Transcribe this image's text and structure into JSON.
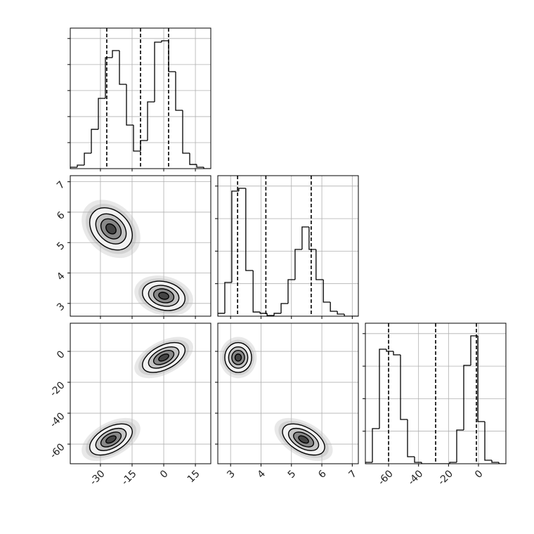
{
  "chart_data": [
    {
      "type": "histogram",
      "bins": [
        -44.3,
        -40.97,
        -37.64,
        -34.31,
        -30.98,
        -27.65,
        -24.32,
        -20.99,
        -17.66,
        -14.33,
        -11.0,
        -7.67,
        -4.34,
        -1.01,
        2.32,
        5.65,
        8.98,
        12.31,
        15.64,
        18.97,
        22.3
      ],
      "counts": [
        11,
        27,
        119,
        302,
        540,
        853,
        907,
        648,
        335,
        135,
        216,
        513,
        972,
        983,
        745,
        448,
        119,
        32,
        11,
        0
      ],
      "quantiles": [
        -27.0,
        -11.0,
        2.3
      ],
      "xlim": [
        -44.3,
        22.3
      ],
      "xticks": [
        -30,
        -15,
        0,
        15
      ],
      "ylim": [
        0,
        1080
      ],
      "yticks": [
        200,
        400,
        600,
        800,
        1000
      ],
      "grid": true
    },
    {
      "type": "contour",
      "xlim": [
        -44.3,
        22.3
      ],
      "xticks": [
        -30,
        -15,
        0,
        15
      ],
      "ylim": [
        2.58,
        7.2
      ],
      "yticks": [
        3,
        4,
        5,
        6,
        7
      ],
      "grid": true,
      "levels": [
        0.5,
        1,
        1.5,
        2.1
      ],
      "clusters": [
        {
          "x": -25,
          "y": 5.45,
          "sx": 4.8,
          "sy": 0.33,
          "rho": -0.3
        },
        {
          "x": 0,
          "y": 3.25,
          "sx": 4.8,
          "sy": 0.23,
          "rho": -0.2
        }
      ]
    },
    {
      "type": "histogram",
      "bins": [
        2.58,
        2.81,
        3.04,
        3.27,
        3.5,
        3.74,
        3.97,
        4.2,
        4.43,
        4.66,
        4.89,
        5.12,
        5.35,
        5.58,
        5.81,
        6.05,
        6.28,
        6.51,
        6.74,
        6.97,
        7.2
      ],
      "counts": [
        22,
        259,
        961,
        983,
        351,
        32,
        22,
        5,
        22,
        97,
        281,
        513,
        686,
        513,
        281,
        108,
        38,
        16,
        0,
        0
      ],
      "quantiles": [
        3.23,
        4.16,
        5.65
      ],
      "xlim": [
        2.58,
        7.2
      ],
      "xticks": [
        3,
        4,
        5,
        6,
        7
      ],
      "ylim": [
        0,
        1080
      ],
      "yticks": [
        250,
        500,
        750,
        1000
      ],
      "grid": true
    },
    {
      "type": "contour",
      "xlim": [
        -44.3,
        22.3
      ],
      "xticks": [
        -30,
        -15,
        0,
        15
      ],
      "ylim": [
        -72.7,
        18.2
      ],
      "yticks": [
        -60,
        -40,
        -20,
        0
      ],
      "grid": true,
      "levels": [
        0.5,
        1,
        1.5,
        2.1
      ],
      "clusters": [
        {
          "x": 0,
          "y": -4,
          "sx": 4.8,
          "sy": 4.6,
          "rho": 0.5
        },
        {
          "x": -25,
          "y": -57,
          "sx": 4.8,
          "sy": 4.8,
          "rho": 0.5
        }
      ]
    },
    {
      "type": "contour",
      "xlim": [
        2.58,
        7.2
      ],
      "xticks": [
        3,
        4,
        5,
        6,
        7
      ],
      "ylim": [
        -72.7,
        18.2
      ],
      "yticks": [
        -60,
        -40,
        -20,
        0
      ],
      "grid": true,
      "levels": [
        0.5,
        1,
        1.5,
        2.1
      ],
      "clusters": [
        {
          "x": 3.25,
          "y": -4,
          "sx": 0.21,
          "sy": 4.6,
          "rho": 0.0
        },
        {
          "x": 5.4,
          "y": -57,
          "sx": 0.33,
          "sy": 4.8,
          "rho": -0.5
        }
      ]
    },
    {
      "type": "histogram",
      "bins": [
        -75.5,
        -70.81,
        -66.12,
        -61.43,
        -56.74,
        -52.05,
        -47.36,
        -42.67,
        -37.98,
        -33.29,
        -28.6,
        -23.91,
        -19.22,
        -14.53,
        -9.84,
        -5.15,
        -0.46,
        4.23,
        8.92,
        13.61,
        18.3
      ],
      "counts": [
        11,
        270,
        880,
        864,
        837,
        340,
        54,
        11,
        0,
        0,
        0,
        0,
        11,
        259,
        756,
        983,
        324,
        27,
        11,
        0
      ],
      "quantiles": [
        -60,
        -28.6,
        -1.4
      ],
      "xlim": [
        -75.5,
        18.3
      ],
      "xticks": [
        -60,
        -40,
        -20,
        0
      ],
      "ylim": [
        0,
        1080
      ],
      "yticks": [
        250,
        500,
        750,
        1000
      ],
      "grid": true
    }
  ]
}
